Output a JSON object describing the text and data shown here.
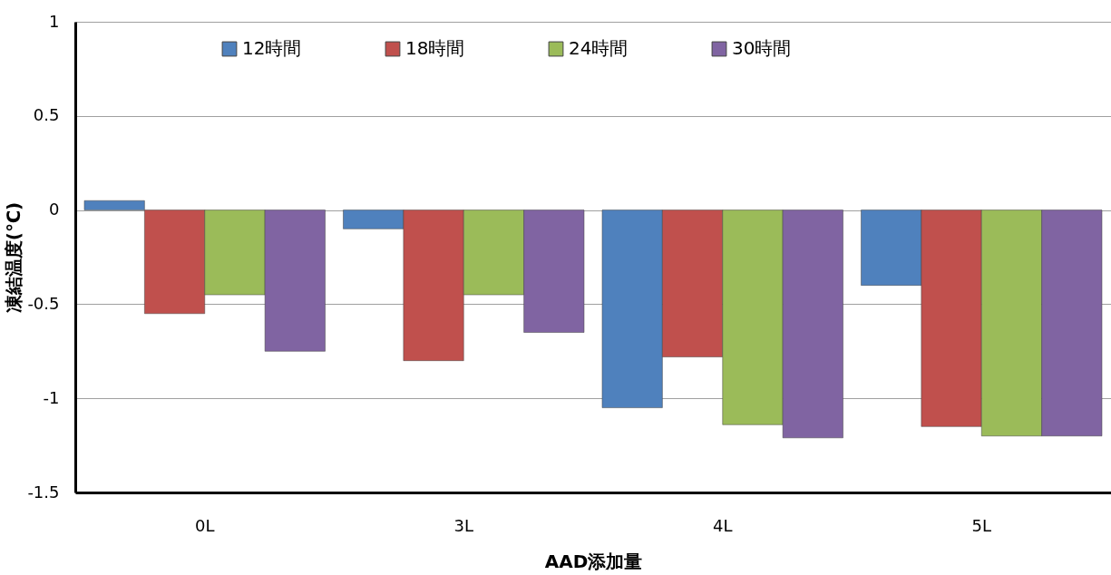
{
  "chart_data": {
    "type": "bar",
    "xlabel": "AAD添加量",
    "ylabel": "凍結温度(℃)",
    "categories": [
      "0L",
      "3L",
      "4L",
      "5L"
    ],
    "series": [
      {
        "name": "12時間",
        "color": "#4f81bd",
        "values": [
          0.05,
          -0.1,
          -1.05,
          -0.4
        ]
      },
      {
        "name": "18時間",
        "color": "#c0504d",
        "values": [
          -0.55,
          -0.8,
          -0.78,
          -1.15
        ]
      },
      {
        "name": "24時間",
        "color": "#9bbb59",
        "values": [
          -0.45,
          -0.45,
          -1.14,
          -1.2
        ]
      },
      {
        "name": "30時間",
        "color": "#8064a2",
        "values": [
          -0.75,
          -0.65,
          -1.21,
          -1.2
        ]
      }
    ],
    "ylim": [
      -1.5,
      1
    ],
    "yticks": [
      -1.5,
      -1,
      -0.5,
      0,
      0.5,
      1
    ],
    "grid": "y",
    "legend": "top"
  }
}
